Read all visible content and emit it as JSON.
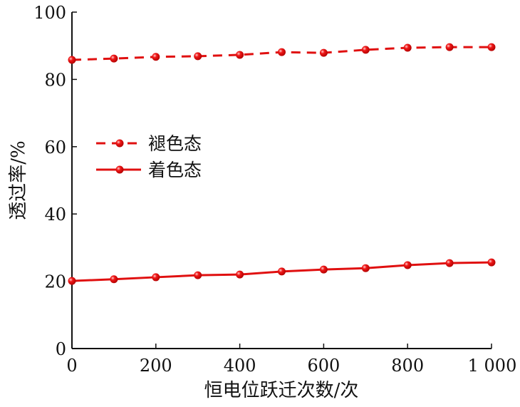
{
  "chart_data": {
    "type": "line",
    "title": "",
    "xlabel": "恒电位跃迁次数/次",
    "ylabel": "透过率/%",
    "xlim": [
      0,
      1000
    ],
    "ylim": [
      0,
      100
    ],
    "x": [
      0,
      100,
      200,
      300,
      400,
      500,
      600,
      700,
      800,
      900,
      1000
    ],
    "xticks": [
      0,
      200,
      400,
      600,
      800,
      1000
    ],
    "xtick_labels": [
      "0",
      "200",
      "400",
      "600",
      "800",
      "1 000"
    ],
    "yticks": [
      0,
      20,
      40,
      60,
      80,
      100
    ],
    "ytick_labels": [
      "0",
      "20",
      "40",
      "60",
      "80",
      "100"
    ],
    "grid": false,
    "legend_position": "center-left",
    "series": [
      {
        "name": "褪色态",
        "style": "dashed",
        "color": "#e01010",
        "values": [
          85.8,
          86.2,
          86.7,
          86.9,
          87.3,
          88.1,
          87.9,
          88.8,
          89.4,
          89.6,
          89.6
        ]
      },
      {
        "name": "着色态",
        "style": "solid",
        "color": "#e01010",
        "values": [
          20.1,
          20.6,
          21.2,
          21.8,
          22.0,
          22.9,
          23.5,
          23.9,
          24.8,
          25.4,
          25.6
        ]
      }
    ]
  }
}
